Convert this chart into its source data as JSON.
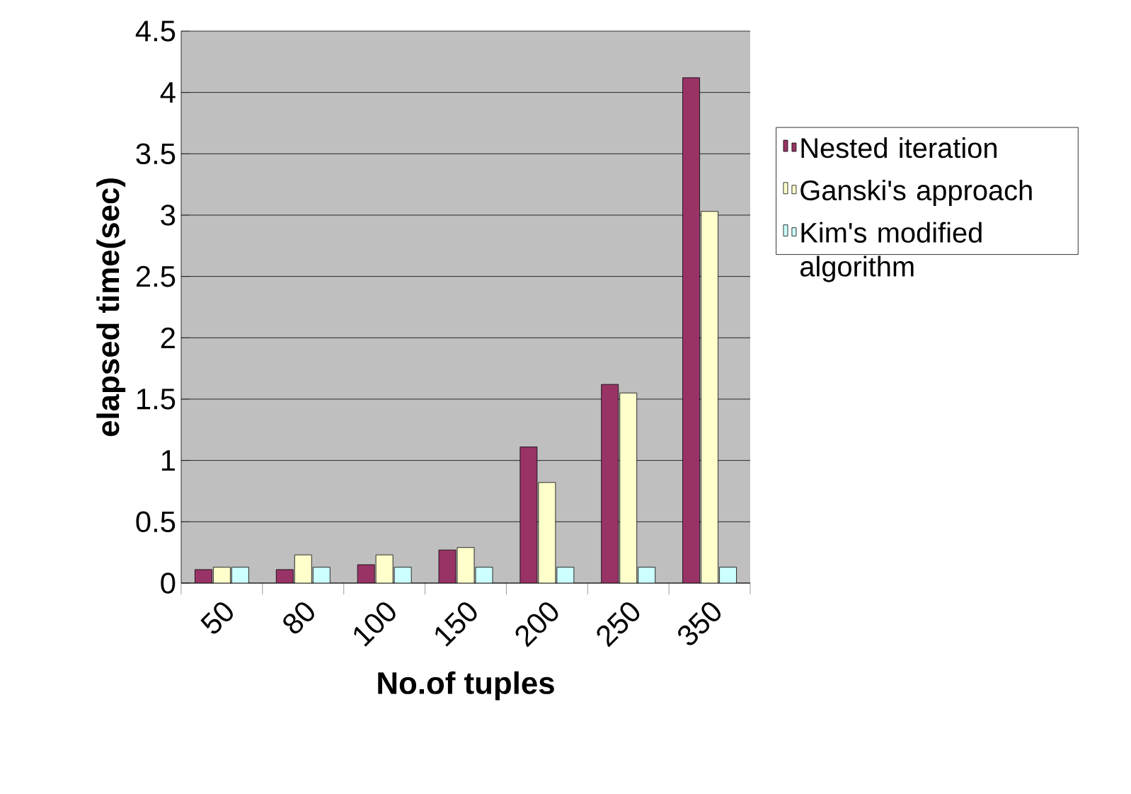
{
  "chart_data": {
    "type": "bar",
    "xlabel": "No.of tuples",
    "ylabel": "elapsed time(sec)",
    "categories": [
      "50",
      "80",
      "100",
      "150",
      "200",
      "250",
      "350"
    ],
    "series": [
      {
        "name": "Nested iteration",
        "color": "#993366",
        "values": [
          0.11,
          0.11,
          0.15,
          0.27,
          1.11,
          1.62,
          4.12
        ]
      },
      {
        "name": "Ganski's approach",
        "color": "#ffffcc",
        "values": [
          0.13,
          0.23,
          0.23,
          0.29,
          0.82,
          1.55,
          3.03
        ]
      },
      {
        "name": "Kim's modified algorithm",
        "color": "#ccffff",
        "values": [
          0.13,
          0.13,
          0.13,
          0.13,
          0.13,
          0.13,
          0.13
        ]
      }
    ],
    "ylim": [
      0,
      4.5
    ],
    "yticks": [
      0,
      0.5,
      1,
      1.5,
      2,
      2.5,
      3,
      3.5,
      4,
      4.5
    ],
    "grid": "y",
    "legend": "right"
  }
}
